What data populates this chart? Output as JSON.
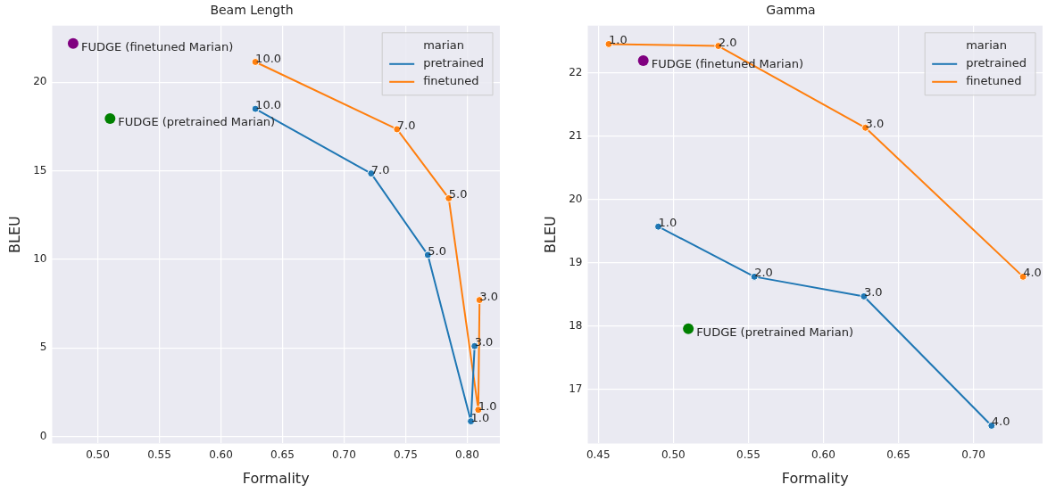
{
  "chart_data": [
    {
      "type": "line",
      "title": "Beam Length",
      "xlabel": "Formality",
      "ylabel": "BLEU",
      "legend_title": "marian",
      "legend": "top right",
      "grid": true,
      "marker": "circle",
      "xlim": [
        0.463,
        0.8265
      ],
      "ylim": [
        -0.4,
        23.2
      ],
      "xticks": [
        {
          "value": 0.5,
          "label": "0.50"
        },
        {
          "value": 0.55,
          "label": "0.55"
        },
        {
          "value": 0.6,
          "label": "0.60"
        },
        {
          "value": 0.65,
          "label": "0.65"
        },
        {
          "value": 0.7,
          "label": "0.70"
        },
        {
          "value": 0.75,
          "label": "0.75"
        },
        {
          "value": 0.8,
          "label": "0.80"
        }
      ],
      "yticks": [
        0,
        5,
        10,
        15,
        20
      ],
      "series": [
        {
          "name": "pretrained",
          "color": "#1f77b4",
          "x": [
            0.628,
            0.722,
            0.768,
            0.803,
            0.806
          ],
          "values": [
            18.5,
            14.85,
            10.25,
            0.85,
            5.1
          ]
        },
        {
          "name": "finetuned",
          "color": "#ff7f0e",
          "x": [
            0.628,
            0.743,
            0.785,
            0.809,
            0.81
          ],
          "values": [
            21.15,
            17.35,
            13.45,
            1.5,
            7.7
          ]
        },
        {
          "type": "scatter",
          "color": "#800080",
          "x": [
            0.48
          ],
          "values": [
            22.2
          ]
        },
        {
          "type": "scatter",
          "color": "#008000",
          "x": [
            0.51
          ],
          "values": [
            17.95
          ]
        }
      ],
      "annotations": [
        {
          "text": "10.0",
          "x": 0.628,
          "y": 18.5
        },
        {
          "text": "7.0",
          "x": 0.722,
          "y": 14.85
        },
        {
          "text": "5.0",
          "x": 0.768,
          "y": 10.25
        },
        {
          "text": "1.0",
          "x": 0.803,
          "y": 0.85
        },
        {
          "text": "3.0",
          "x": 0.806,
          "y": 5.1
        },
        {
          "text": "10.0",
          "x": 0.628,
          "y": 21.15
        },
        {
          "text": "7.0",
          "x": 0.743,
          "y": 17.35
        },
        {
          "text": "5.0",
          "x": 0.785,
          "y": 13.45
        },
        {
          "text": "1.0",
          "x": 0.809,
          "y": 1.5
        },
        {
          "text": "3.0",
          "x": 0.81,
          "y": 7.7
        },
        {
          "text": "FUDGE (finetuned Marian)",
          "x": 0.48,
          "y": 22.2
        },
        {
          "text": "FUDGE (pretrained Marian)",
          "x": 0.51,
          "y": 17.95
        }
      ]
    },
    {
      "type": "line",
      "title": "Gamma",
      "xlabel": "Formality",
      "ylabel": "BLEU",
      "legend_title": "marian",
      "legend": "top right",
      "grid": true,
      "marker": "circle",
      "xlim": [
        0.443,
        0.746
      ],
      "ylim": [
        16.15,
        22.74
      ],
      "xticks": [
        {
          "value": 0.45,
          "label": "0.45"
        },
        {
          "value": 0.5,
          "label": "0.50"
        },
        {
          "value": 0.55,
          "label": "0.55"
        },
        {
          "value": 0.6,
          "label": "0.60"
        },
        {
          "value": 0.65,
          "label": "0.65"
        },
        {
          "value": 0.7,
          "label": "0.70"
        }
      ],
      "yticks": [
        17,
        18,
        19,
        20,
        21,
        22
      ],
      "series": [
        {
          "name": "pretrained",
          "color": "#1f77b4",
          "x": [
            0.49,
            0.554,
            0.627,
            0.712
          ],
          "values": [
            19.57,
            18.78,
            18.47,
            16.43
          ]
        },
        {
          "name": "finetuned",
          "color": "#ff7f0e",
          "x": [
            0.457,
            0.53,
            0.628,
            0.733
          ],
          "values": [
            22.45,
            22.42,
            21.13,
            18.78
          ]
        },
        {
          "type": "scatter",
          "color": "#800080",
          "x": [
            0.48
          ],
          "values": [
            22.19
          ]
        },
        {
          "type": "scatter",
          "color": "#008000",
          "x": [
            0.51
          ],
          "values": [
            17.96
          ]
        }
      ],
      "annotations": [
        {
          "text": "1.0",
          "x": 0.49,
          "y": 19.57
        },
        {
          "text": "2.0",
          "x": 0.554,
          "y": 18.78
        },
        {
          "text": "3.0",
          "x": 0.627,
          "y": 18.47
        },
        {
          "text": "4.0",
          "x": 0.712,
          "y": 16.43
        },
        {
          "text": "1.0",
          "x": 0.457,
          "y": 22.45
        },
        {
          "text": "2.0",
          "x": 0.53,
          "y": 22.42
        },
        {
          "text": "3.0",
          "x": 0.628,
          "y": 21.13
        },
        {
          "text": "4.0",
          "x": 0.733,
          "y": 18.78
        },
        {
          "text": "FUDGE (finetuned Marian)",
          "x": 0.48,
          "y": 22.19
        },
        {
          "text": "FUDGE (pretrained Marian)",
          "x": 0.51,
          "y": 17.96
        }
      ]
    }
  ]
}
